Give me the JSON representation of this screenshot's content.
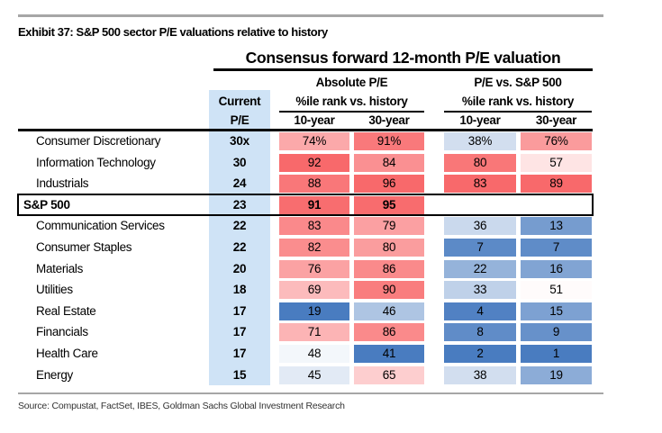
{
  "exhibit_title": "Exhibit 37: S&P 500 sector P/E valuations relative to history",
  "source_line": "Source: Compustat, FactSet, IBES, Goldman Sachs Global Investment Research",
  "table": {
    "title": "Consensus forward 12-month P/E valuation",
    "current_header_line1": "Current",
    "current_header_line2": "P/E",
    "group_absolute": {
      "label": "Absolute P/E",
      "sub_label": "%ile rank vs. history",
      "col1": "10-year",
      "col2": "30-year"
    },
    "group_relative": {
      "label": "P/E vs. S&P 500",
      "sub_label": "%ile rank vs. history",
      "col1": "10-year",
      "col2": "30-year"
    }
  },
  "colors": {
    "column_band_blue": "#CFE3F6",
    "heat_blue_low": "#497CC0",
    "heat_white_mid": "#FFFFFF",
    "heat_red_high": "#F8696B",
    "rule_gray": "#A6A6A6",
    "text_black": "#000000"
  },
  "chart_data": {
    "type": "heatmap",
    "title": "Consensus forward 12-month P/E valuation",
    "column_groups": [
      "Absolute P/E %ile rank vs. history",
      "P/E vs. S&P 500 %ile rank vs. history"
    ],
    "columns": [
      "Current P/E",
      "Absolute 10-year %ile",
      "Absolute 30-year %ile",
      "vs. S&P 500 10-year %ile",
      "vs. S&P 500 30-year %ile"
    ],
    "midpoint": 50,
    "rows": [
      {
        "sector": "Consumer Discretionary",
        "current_text": "30x",
        "current_pe": 30,
        "emphasis": false,
        "cells": [
          {
            "text": "74%",
            "value": 74
          },
          {
            "text": "91%",
            "value": 91
          },
          {
            "text": "38%",
            "value": 38
          },
          {
            "text": "76%",
            "value": 76
          }
        ]
      },
      {
        "sector": "Information Technology",
        "current_text": "30",
        "current_pe": 30,
        "emphasis": false,
        "cells": [
          {
            "text": "92",
            "value": 92
          },
          {
            "text": "84",
            "value": 84
          },
          {
            "text": "80",
            "value": 80
          },
          {
            "text": "57",
            "value": 57
          }
        ]
      },
      {
        "sector": "Industrials",
        "current_text": "24",
        "current_pe": 24,
        "emphasis": false,
        "cells": [
          {
            "text": "88",
            "value": 88
          },
          {
            "text": "96",
            "value": 96
          },
          {
            "text": "83",
            "value": 83
          },
          {
            "text": "89",
            "value": 89
          }
        ]
      },
      {
        "sector": "S&P 500",
        "current_text": "23",
        "current_pe": 23,
        "emphasis": true,
        "cells": [
          {
            "text": "91",
            "value": 91
          },
          {
            "text": "95",
            "value": 95
          },
          {
            "text": "",
            "value": null
          },
          {
            "text": "",
            "value": null
          }
        ]
      },
      {
        "sector": "Communication Services",
        "current_text": "22",
        "current_pe": 22,
        "emphasis": false,
        "cells": [
          {
            "text": "83",
            "value": 83
          },
          {
            "text": "79",
            "value": 79
          },
          {
            "text": "36",
            "value": 36
          },
          {
            "text": "13",
            "value": 13
          }
        ]
      },
      {
        "sector": "Consumer Staples",
        "current_text": "22",
        "current_pe": 22,
        "emphasis": false,
        "cells": [
          {
            "text": "82",
            "value": 82
          },
          {
            "text": "80",
            "value": 80
          },
          {
            "text": "7",
            "value": 7
          },
          {
            "text": "7",
            "value": 7
          }
        ]
      },
      {
        "sector": "Materials",
        "current_text": "20",
        "current_pe": 20,
        "emphasis": false,
        "cells": [
          {
            "text": "76",
            "value": 76
          },
          {
            "text": "86",
            "value": 86
          },
          {
            "text": "22",
            "value": 22
          },
          {
            "text": "16",
            "value": 16
          }
        ]
      },
      {
        "sector": "Utilities",
        "current_text": "18",
        "current_pe": 18,
        "emphasis": false,
        "cells": [
          {
            "text": "69",
            "value": 69
          },
          {
            "text": "90",
            "value": 90
          },
          {
            "text": "33",
            "value": 33
          },
          {
            "text": "51",
            "value": 51
          }
        ]
      },
      {
        "sector": "Real Estate",
        "current_text": "17",
        "current_pe": 17,
        "emphasis": false,
        "cells": [
          {
            "text": "19",
            "value": 19
          },
          {
            "text": "46",
            "value": 46
          },
          {
            "text": "4",
            "value": 4
          },
          {
            "text": "15",
            "value": 15
          }
        ]
      },
      {
        "sector": "Financials",
        "current_text": "17",
        "current_pe": 17,
        "emphasis": false,
        "cells": [
          {
            "text": "71",
            "value": 71
          },
          {
            "text": "86",
            "value": 86
          },
          {
            "text": "8",
            "value": 8
          },
          {
            "text": "9",
            "value": 9
          }
        ]
      },
      {
        "sector": "Health Care",
        "current_text": "17",
        "current_pe": 17,
        "emphasis": false,
        "cells": [
          {
            "text": "48",
            "value": 48
          },
          {
            "text": "41",
            "value": 41
          },
          {
            "text": "2",
            "value": 2
          },
          {
            "text": "1",
            "value": 1
          }
        ]
      },
      {
        "sector": "Energy",
        "current_text": "15",
        "current_pe": 15,
        "emphasis": false,
        "cells": [
          {
            "text": "45",
            "value": 45
          },
          {
            "text": "65",
            "value": 65
          },
          {
            "text": "38",
            "value": 38
          },
          {
            "text": "19",
            "value": 19
          }
        ]
      }
    ]
  }
}
